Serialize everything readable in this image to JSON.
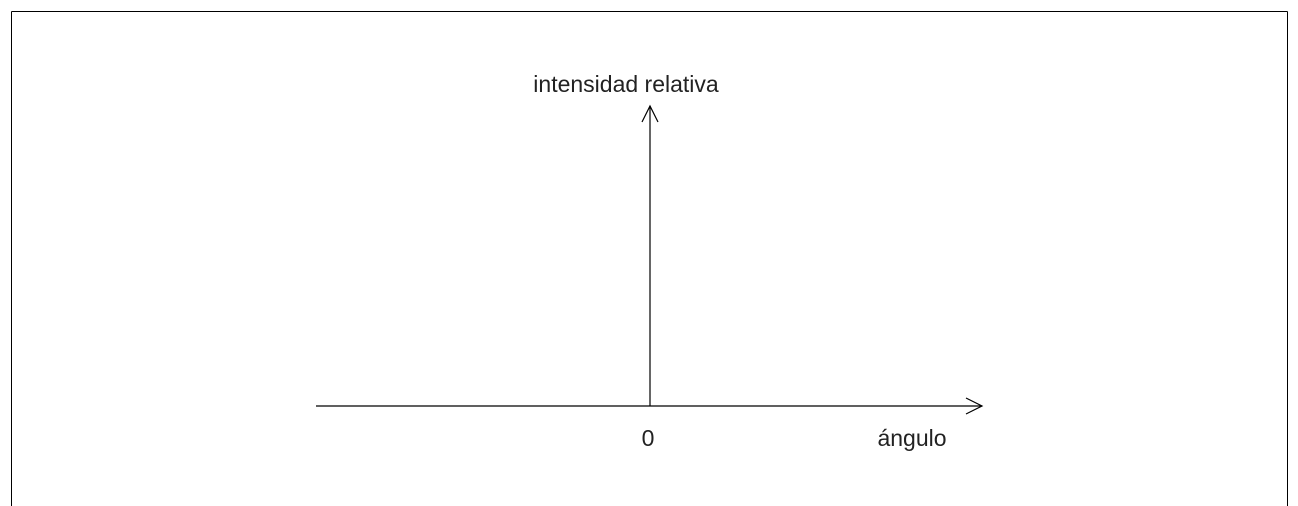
{
  "diagram": {
    "y_axis_label": "intensidad relativa",
    "x_axis_label": "ángulo",
    "origin_label": "0"
  },
  "colors": {
    "line": "#000000",
    "text": "#222222",
    "background": "#ffffff"
  }
}
